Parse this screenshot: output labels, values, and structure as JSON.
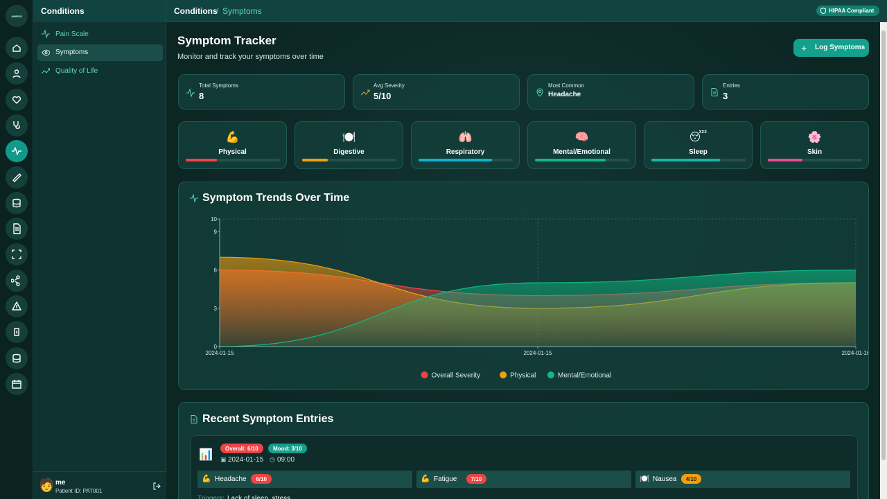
{
  "sidebar": {
    "logo": "AIMEDS"
  },
  "subnav": {
    "title": "Conditions",
    "items": [
      "Pain Scale",
      "Symptoms",
      "Quality of Life"
    ]
  },
  "user": {
    "name": "me",
    "patient_id": "Patient ID: PAT001"
  },
  "topbar": {
    "breadcrumb": [
      "Conditions",
      "Symptoms"
    ],
    "separator": "/",
    "badge": "HIPAA Compliant"
  },
  "header": {
    "title": "Symptom Tracker",
    "subtitle": "Monitor and track your symptoms over time",
    "button": "Log Symptoms"
  },
  "stats": [
    {
      "label": "Total Symptoms",
      "value": "8"
    },
    {
      "label": "Avg Severity",
      "value": "5/10"
    },
    {
      "label": "Most Common",
      "value": "Headache"
    },
    {
      "label": "Entries",
      "value": "3"
    }
  ],
  "categories": [
    {
      "icon": "💪",
      "name": "Physical",
      "level": 33,
      "color": "#ef4444"
    },
    {
      "icon": "🍽️",
      "name": "Digestive",
      "level": 27,
      "color": "#f59e0b"
    },
    {
      "icon": "🫁",
      "name": "Respiratory",
      "level": 78,
      "color": "#06b6d4"
    },
    {
      "icon": "🧠",
      "name": "Mental/Emotional",
      "level": 75,
      "color": "#10b981"
    },
    {
      "icon": "😴",
      "name": "Sleep",
      "level": 73,
      "color": "#14b8a6"
    },
    {
      "icon": "🌸",
      "name": "Skin",
      "level": 37,
      "color": "#ec4899"
    }
  ],
  "chart_data": {
    "type": "area",
    "title": "Symptom Trends Over Time",
    "categories": [
      "2024-01-15",
      "2024-01-15",
      "2024-01-16"
    ],
    "series": [
      {
        "name": "Overall Severity",
        "color": "#ef4444",
        "values": [
          6,
          4,
          5
        ]
      },
      {
        "name": "Physical",
        "color": "#f59e0b",
        "values": [
          7,
          3,
          5
        ]
      },
      {
        "name": "Mental/Emotional",
        "color": "#10b981",
        "values": [
          0,
          5,
          6
        ]
      }
    ],
    "ylim": [
      0,
      10
    ],
    "yticks": [
      0,
      3,
      6,
      9,
      10
    ],
    "grid": true,
    "legend": "bottom"
  },
  "entries": {
    "title": "Recent Symptom Entries",
    "items": [
      {
        "overall": "Overall: 6/10",
        "mood": "Mood: 3/10",
        "date": "2024-01-15",
        "time": "09:00",
        "symptoms": [
          {
            "icon": "💪",
            "name": "Headache",
            "severity": "6/10"
          },
          {
            "icon": "💪",
            "name": "Fatigue",
            "severity": "7/10"
          },
          {
            "icon": "🍽️",
            "name": "Nausea",
            "severity": "4/10"
          }
        ],
        "triggers_label": "Triggers:",
        "triggers": "Lack of sleep, stress"
      }
    ]
  }
}
